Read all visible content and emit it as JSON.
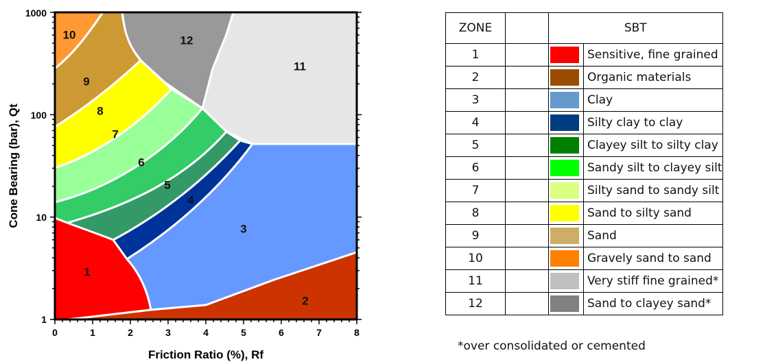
{
  "chart": {
    "ylabel": "Cone Bearing (bar), Qt",
    "xlabel": "Friction Ratio (%), Rf",
    "x_ticks": [
      "0",
      "1",
      "2",
      "3",
      "4",
      "5",
      "6",
      "7",
      "8"
    ],
    "y_ticks": [
      "1",
      "10",
      "100",
      "1000"
    ],
    "zones": [
      {
        "label": "1",
        "color": "#ff0000"
      },
      {
        "label": "2",
        "color": "#cc3300"
      },
      {
        "label": "3",
        "color": "#6699ff"
      },
      {
        "label": "4",
        "color": "#003399"
      },
      {
        "label": "5",
        "color": "#339966"
      },
      {
        "label": "6",
        "color": "#33cc66"
      },
      {
        "label": "7",
        "color": "#99ff99"
      },
      {
        "label": "8",
        "color": "#ffff00"
      },
      {
        "label": "9",
        "color": "#cc9933"
      },
      {
        "label": "10",
        "color": "#ff9933"
      },
      {
        "label": "11",
        "color": "#e6e6e6"
      },
      {
        "label": "12",
        "color": "#999999"
      }
    ]
  },
  "legend": {
    "header_zone": "ZONE",
    "header_sbt": "SBT",
    "rows": [
      {
        "zone": "1",
        "color": "#ff0000",
        "sbt": "Sensitive, fine grained"
      },
      {
        "zone": "2",
        "color": "#994c00",
        "sbt": "Organic materials"
      },
      {
        "zone": "3",
        "color": "#6699cc",
        "sbt": "Clay"
      },
      {
        "zone": "4",
        "color": "#003d80",
        "sbt": "Silty clay to clay"
      },
      {
        "zone": "5",
        "color": "#008000",
        "sbt": "Clayey silt to silty clay"
      },
      {
        "zone": "6",
        "color": "#00ff00",
        "sbt": "Sandy silt to clayey silt"
      },
      {
        "zone": "7",
        "color": "#ddff80",
        "sbt": "Silty sand to sandy silt"
      },
      {
        "zone": "8",
        "color": "#ffff00",
        "sbt": "Sand to silty sand"
      },
      {
        "zone": "9",
        "color": "#ccae66",
        "sbt": "Sand"
      },
      {
        "zone": "10",
        "color": "#ff8000",
        "sbt": "Gravely sand to sand"
      },
      {
        "zone": "11",
        "color": "#c0c0c0",
        "sbt": "Very stiff fine grained*"
      },
      {
        "zone": "12",
        "color": "#808080",
        "sbt": "Sand to clayey sand*"
      }
    ],
    "footnote": "*over consolidated or cemented"
  }
}
